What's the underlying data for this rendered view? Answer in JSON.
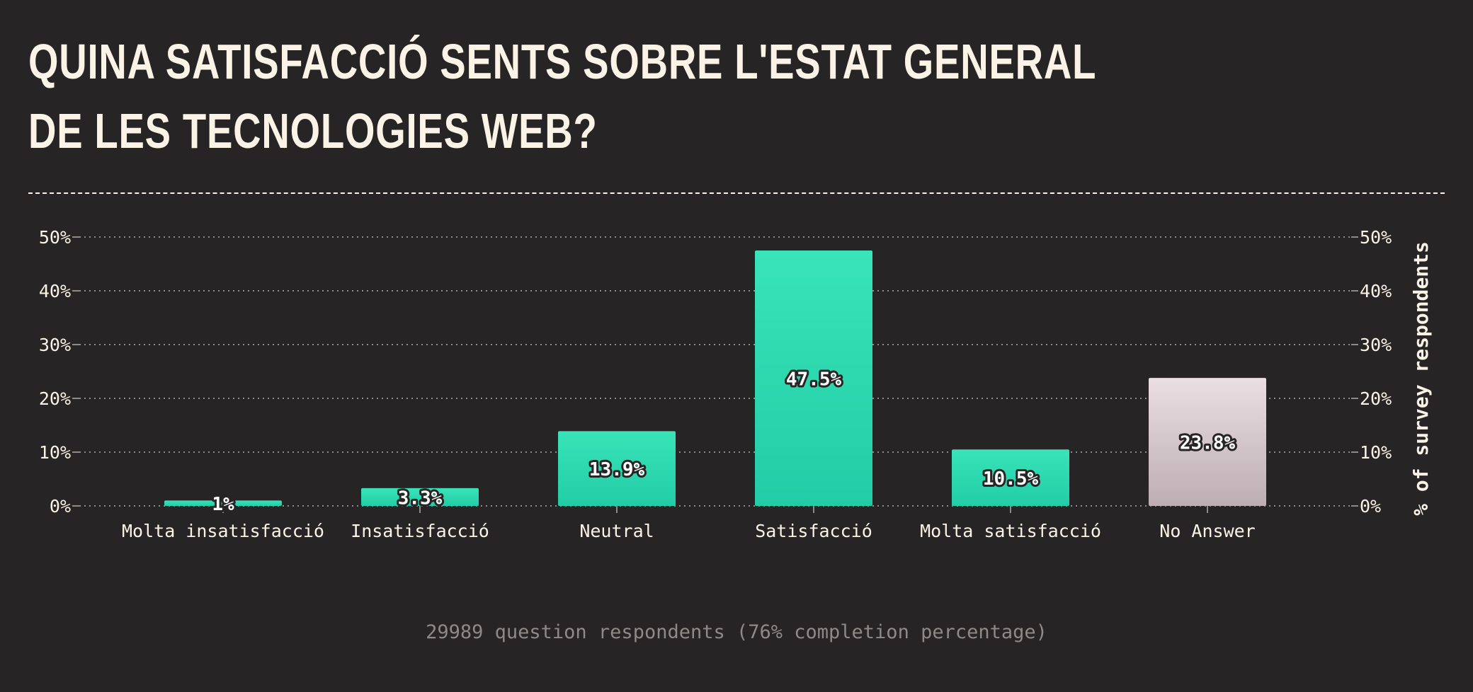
{
  "title": "Quina satisfacció sents sobre l'estat general de les tecnologies web?",
  "footer": "29989 question respondents (76% completion percentage)",
  "colors": {
    "background": "#272425",
    "text": "#fbf3e6",
    "bar_top": "#3ae4b8",
    "bar_bottom": "#22cca6",
    "no_answer_top": "#ebdfe3",
    "no_answer_bottom": "#bcaeb3",
    "grid": "#8d8a88"
  },
  "chart_data": {
    "type": "bar",
    "categories": [
      "Molta insatisfacció",
      "Insatisfacció",
      "Neutral",
      "Satisfacció",
      "Molta satisfacció",
      "No Answer"
    ],
    "values": [
      1,
      3.3,
      13.9,
      47.5,
      10.5,
      23.8
    ],
    "data_labels": [
      "1%",
      "3.3%",
      "13.9%",
      "47.5%",
      "10.5%",
      "23.8%"
    ],
    "title": "Quina satisfacció sents sobre l'estat general de les tecnologies web?",
    "xlabel": "",
    "ylabel": "% of survey respondents",
    "ylim": [
      0,
      50
    ],
    "yticks": [
      0,
      10,
      20,
      30,
      40,
      50
    ],
    "ytick_labels": [
      "0%",
      "10%",
      "20%",
      "30%",
      "40%",
      "50%"
    ],
    "grid": true,
    "highlight_category": "No Answer"
  }
}
